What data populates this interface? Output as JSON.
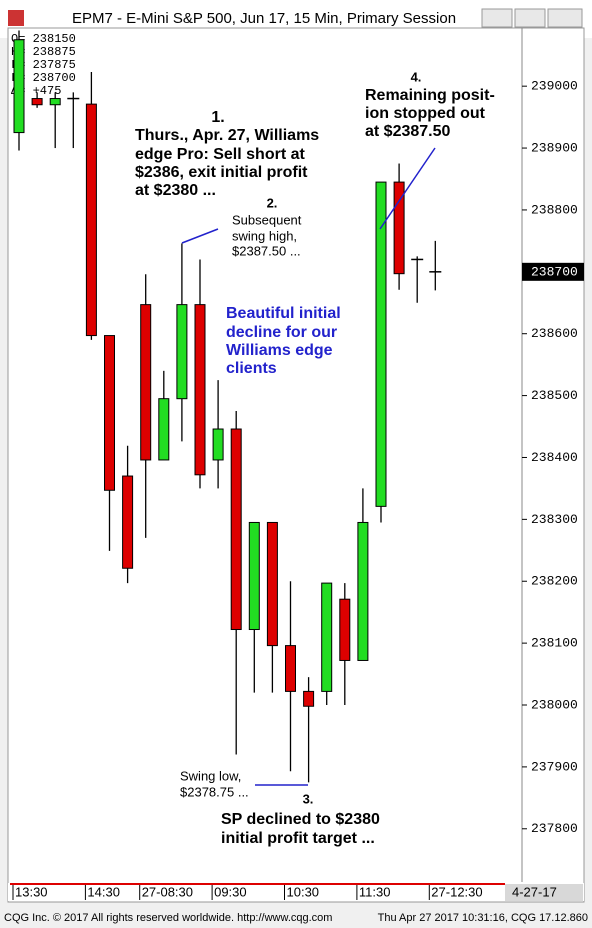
{
  "window_title": "EPM7 - E-Mini S&P 500, Jun 17, 15 Min, Primary Session",
  "footer": {
    "left": "CQG Inc. © 2017 All rights reserved worldwide. http://www.cqg.com",
    "right": "Thu Apr 27 2017 10:31:16, CQG 17.12.860"
  },
  "chart_data": {
    "type": "candlestick",
    "info_box": [
      "O=  238150",
      "H=  238875",
      "L=  237875",
      "L=  238700",
      "Δ=     +475"
    ],
    "categories": [
      "13:30",
      null,
      null,
      null,
      "14:30",
      null,
      null,
      "27-08:30",
      null,
      null,
      null,
      "09:30",
      null,
      null,
      null,
      "10:30",
      null,
      null,
      null,
      "11:30",
      null,
      null,
      null,
      "27-12:30"
    ],
    "date_label": "4-27-17",
    "open": [
      238925,
      238980,
      238970,
      238980,
      238971,
      238597,
      238370,
      238647,
      238396,
      238495,
      238647,
      238396,
      238446,
      238122,
      238295,
      238096,
      238022,
      238022,
      238171,
      238072,
      238321,
      238845,
      238720,
      238700
    ],
    "high": [
      239090,
      238990,
      238990,
      238990,
      239023,
      238597,
      238419,
      238696,
      238540,
      238746,
      238720,
      238525,
      238475,
      238295,
      238295,
      238200,
      238045,
      238197,
      238197,
      238350,
      238845,
      238875,
      238725,
      238750
    ],
    "low": [
      238896,
      238965,
      238900,
      238900,
      238590,
      238249,
      238197,
      238270,
      238396,
      238426,
      238350,
      238350,
      237920,
      238020,
      238020,
      237893,
      237875,
      238000,
      238000,
      238072,
      238295,
      238671,
      238650,
      238670
    ],
    "close": [
      239075,
      238970,
      238980,
      238980,
      238597,
      238347,
      238221,
      238396,
      238495,
      238647,
      238372,
      238446,
      238122,
      238295,
      238096,
      238022,
      237998,
      238197,
      238072,
      238295,
      238845,
      238697,
      238720,
      238700
    ],
    "up_color": "#22dd22",
    "down_color": "#dd0000",
    "ylim": [
      237714,
      239094
    ],
    "yticks": [
      237800,
      237900,
      238000,
      238100,
      238200,
      238300,
      238400,
      238500,
      238600,
      238700,
      238800,
      238900,
      239000
    ],
    "annotations": [
      {
        "lines": [
          "1.",
          "Thurs., Apr. 27, Williams",
          "edge Pro: Sell short at",
          "$2386, exit initial profit",
          "at $2380 ..."
        ]
      },
      {
        "lines": [
          "2.",
          "Subsequent",
          "swing high,",
          "$2387.50 ..."
        ]
      },
      {
        "lines": [
          "Beautiful initial",
          "decline for our",
          "Williams edge",
          "clients"
        ]
      },
      {
        "lines": [
          "Swing low,",
          "$2378.75 ..."
        ]
      },
      {
        "lines": [
          "3.",
          "SP declined to $2380",
          "initial profit target ..."
        ]
      },
      {
        "lines": [
          "4.",
          "Remaining posit-",
          "ion stopped out",
          "at $2387.50"
        ]
      }
    ]
  }
}
